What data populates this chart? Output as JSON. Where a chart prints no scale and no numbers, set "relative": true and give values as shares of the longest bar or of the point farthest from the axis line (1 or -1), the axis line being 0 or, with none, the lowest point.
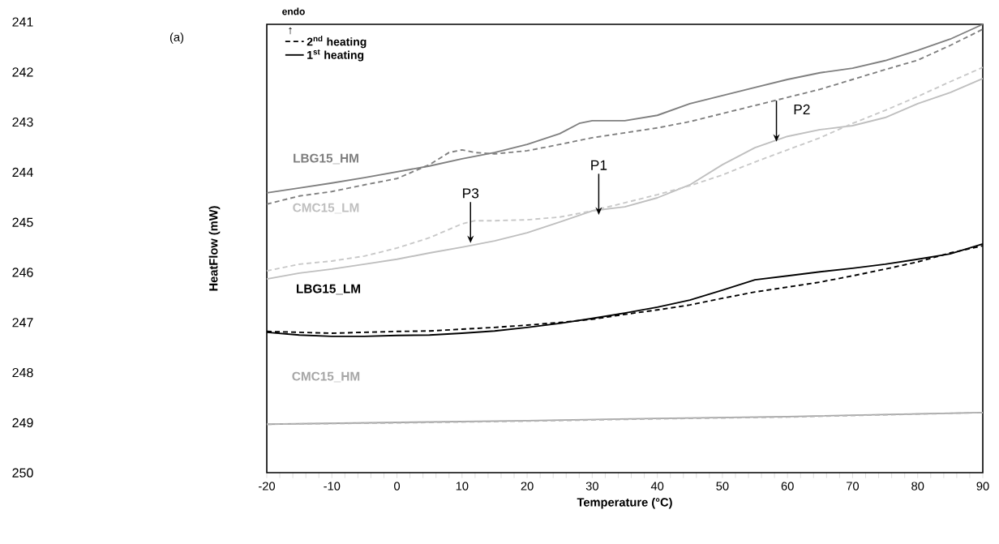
{
  "chart_data": {
    "type": "line",
    "relative": true,
    "xlabel": "Temperature (°C)",
    "ylabel": "HeatFlow (mW)",
    "xlim": [
      -20,
      90
    ],
    "xticks": [
      -20,
      -10,
      0,
      10,
      20,
      30,
      40,
      50,
      60,
      70,
      80,
      90
    ],
    "legend": "top left",
    "marker": "none",
    "grid": false,
    "series": [
      {
        "color": "#7f7f7f",
        "line_style": "solid",
        "x": [
          -20,
          -15,
          -10,
          -5,
          0,
          5,
          10,
          15,
          20,
          25,
          28,
          30,
          35,
          40,
          45,
          50,
          55,
          60,
          65,
          70,
          75,
          80,
          85,
          90
        ],
        "values": [
          0.624,
          0.635,
          0.646,
          0.658,
          0.671,
          0.684,
          0.7,
          0.714,
          0.732,
          0.756,
          0.779,
          0.785,
          0.785,
          0.797,
          0.823,
          0.841,
          0.859,
          0.877,
          0.892,
          0.902,
          0.919,
          0.942,
          0.967,
          1.0
        ]
      },
      {
        "color": "#7f7f7f",
        "line_style": "dashed",
        "x": [
          -20,
          -15,
          -10,
          -5,
          0,
          5,
          8,
          10,
          12,
          15,
          20,
          25,
          30,
          35,
          40,
          45,
          50,
          55,
          60,
          65,
          70,
          75,
          80,
          85,
          90
        ],
        "values": [
          0.599,
          0.617,
          0.627,
          0.642,
          0.656,
          0.687,
          0.714,
          0.72,
          0.714,
          0.711,
          0.718,
          0.732,
          0.747,
          0.758,
          0.769,
          0.783,
          0.801,
          0.819,
          0.837,
          0.855,
          0.877,
          0.899,
          0.92,
          0.953,
          0.989
        ]
      },
      {
        "color": "#bfbfbf",
        "line_style": "solid",
        "x": [
          -20,
          -15,
          -10,
          -5,
          0,
          5,
          10,
          15,
          20,
          25,
          30,
          35,
          40,
          45,
          50,
          55,
          60,
          65,
          70,
          75,
          80,
          85,
          90
        ],
        "values": [
          0.432,
          0.445,
          0.454,
          0.465,
          0.476,
          0.49,
          0.503,
          0.517,
          0.535,
          0.559,
          0.584,
          0.593,
          0.613,
          0.642,
          0.687,
          0.725,
          0.75,
          0.765,
          0.774,
          0.792,
          0.823,
          0.848,
          0.879
        ]
      },
      {
        "color": "#c8c8c8",
        "line_style": "dashed",
        "x": [
          -20,
          -15,
          -10,
          -5,
          0,
          5,
          10,
          12,
          15,
          20,
          25,
          30,
          35,
          40,
          45,
          50,
          55,
          60,
          65,
          70,
          75,
          80,
          85,
          90
        ],
        "values": [
          0.45,
          0.465,
          0.472,
          0.483,
          0.501,
          0.524,
          0.555,
          0.562,
          0.562,
          0.564,
          0.57,
          0.584,
          0.602,
          0.62,
          0.64,
          0.664,
          0.693,
          0.72,
          0.747,
          0.779,
          0.808,
          0.839,
          0.872,
          0.904
        ]
      },
      {
        "name": "2$^{nd}$ heating",
        "color": "#000000",
        "line_style": "dashed",
        "x": [
          -20,
          -15,
          -10,
          -5,
          0,
          5,
          10,
          15,
          20,
          25,
          30,
          35,
          40,
          45,
          50,
          55,
          60,
          65,
          70,
          75,
          80,
          85,
          90
        ],
        "values": [
          0.315,
          0.313,
          0.311,
          0.313,
          0.315,
          0.316,
          0.32,
          0.324,
          0.329,
          0.335,
          0.342,
          0.353,
          0.363,
          0.374,
          0.389,
          0.403,
          0.414,
          0.425,
          0.439,
          0.454,
          0.47,
          0.49,
          0.506
        ]
      },
      {
        "name": "1$^{st}$ heating",
        "color": "#000000",
        "line_style": "solid",
        "x": [
          -20,
          -15,
          -10,
          -5,
          0,
          5,
          10,
          15,
          20,
          25,
          30,
          35,
          40,
          45,
          50,
          55,
          60,
          65,
          70,
          75,
          80,
          85,
          90
        ],
        "values": [
          0.313,
          0.307,
          0.304,
          0.304,
          0.306,
          0.307,
          0.311,
          0.316,
          0.324,
          0.333,
          0.344,
          0.356,
          0.369,
          0.385,
          0.407,
          0.43,
          0.439,
          0.448,
          0.456,
          0.465,
          0.476,
          0.488,
          0.51
        ]
      },
      {
        "color": "#a6a6a6",
        "line_style": "solid",
        "x": [
          -20,
          0,
          20,
          40,
          60,
          90
        ],
        "values": [
          0.108,
          0.112,
          0.116,
          0.121,
          0.125,
          0.134
        ]
      },
      {
        "color": "#b4b4b4",
        "line_style": "dashed",
        "x": [
          -20,
          0,
          20,
          40,
          60,
          90
        ],
        "values": [
          0.108,
          0.111,
          0.115,
          0.12,
          0.124,
          0.134
        ]
      }
    ],
    "annotations": [
      "LBG15_HM",
      "CMC15_LM",
      "LBG15_LM",
      "CMC15_HM",
      {
        "text": "P1",
        "x": 31,
        "y": 0.575
      },
      {
        "text": "P2",
        "x": 58.3,
        "y": 0.738
      },
      {
        "text": "P3",
        "x": 11.3,
        "y": 0.512
      },
      "(a)",
      "endo",
      "↑",
      "241",
      "242",
      "243",
      "244",
      "245",
      "246",
      "247",
      "248",
      "249",
      "250"
    ]
  }
}
